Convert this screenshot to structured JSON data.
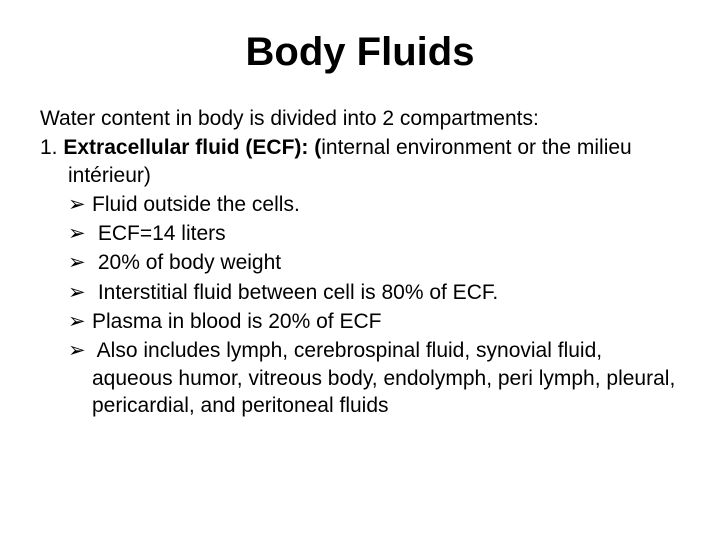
{
  "title": "Body Fluids",
  "intro": "Water content in body is divided into 2 compartments:",
  "numbered": {
    "prefix": "1.  ",
    "bold_part": "Extracellular fluid (ECF): (",
    "rest": "internal environment or the milieu intérieur)"
  },
  "bullets": [
    "Fluid outside the cells.",
    " ECF=14 liters",
    " 20% of body weight",
    " Interstitial fluid between cell is 80% of ECF.",
    "Plasma in blood is 20% of ECF",
    " Also includes lymph, cerebrospinal fluid, synovial fluid, aqueous humor, vitreous body, endolymph, peri lymph, pleural, pericardial, and peritoneal fluids"
  ],
  "bullet_marker": "➢",
  "styles": {
    "title_fontsize": 40,
    "body_fontsize": 21,
    "text_color": "#000000",
    "background_color": "#ffffff"
  }
}
